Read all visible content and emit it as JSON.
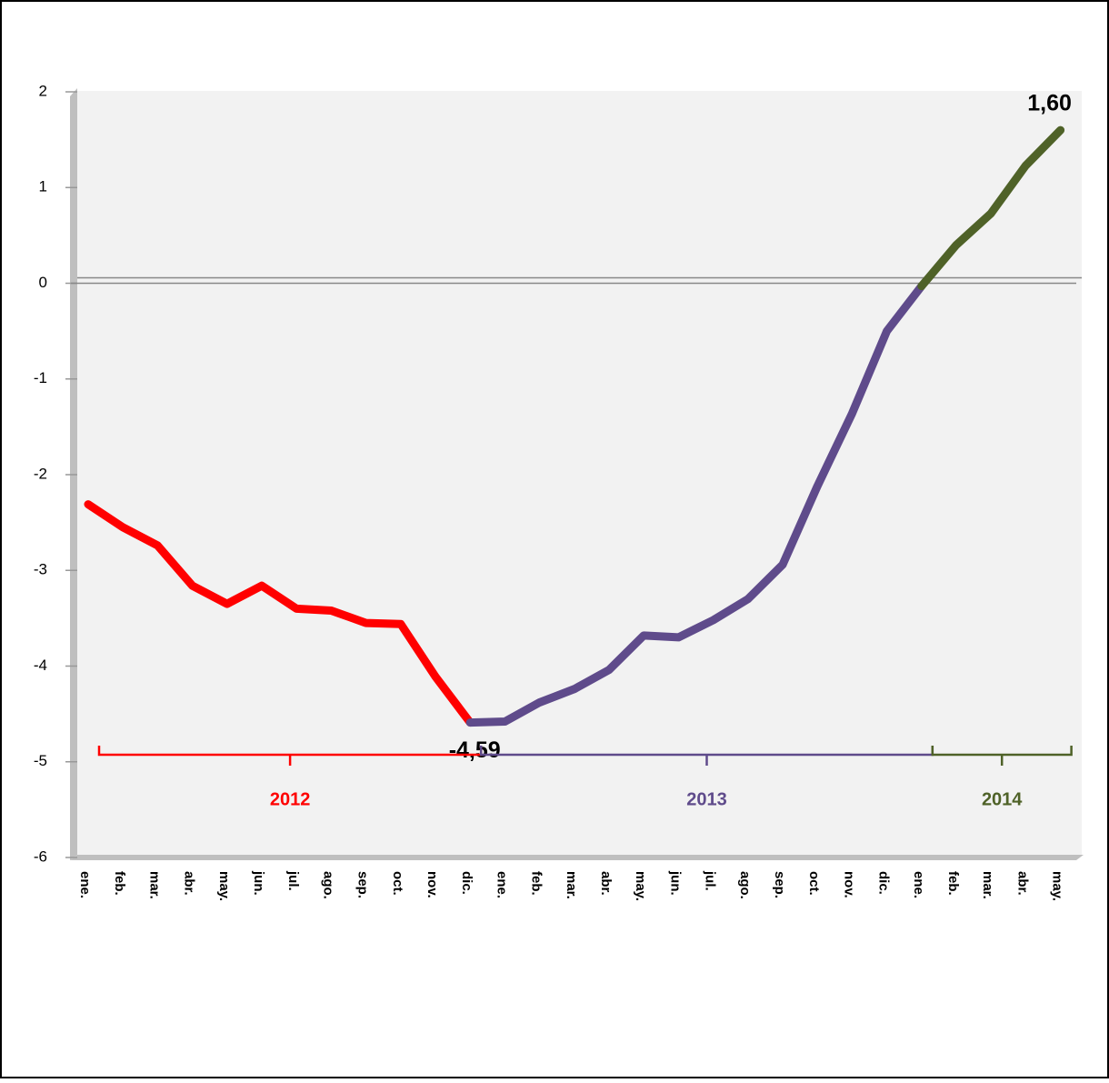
{
  "chart_data": {
    "type": "line",
    "categories": [
      "ene.",
      "feb.",
      "mar.",
      "abr.",
      "may.",
      "jun.",
      "jul.",
      "ago.",
      "sep.",
      "oct.",
      "nov.",
      "dic.",
      "ene.",
      "feb.",
      "mar.",
      "abr.",
      "may.",
      "jun.",
      "jul.",
      "ago.",
      "sep.",
      "oct.",
      "nov.",
      "dic.",
      "ene.",
      "feb.",
      "mar.",
      "abr.",
      "may."
    ],
    "series": [
      {
        "name": "2012",
        "color": "#ff0000",
        "values": [
          -2.31,
          -2.55,
          -2.74,
          -3.16,
          -3.35,
          -3.16,
          -3.4,
          -3.42,
          -3.55,
          -3.56,
          -4.11,
          -4.59,
          null,
          null,
          null,
          null,
          null,
          null,
          null,
          null,
          null,
          null,
          null,
          null,
          null,
          null,
          null,
          null,
          null
        ],
        "value_labels": [
          null,
          null,
          null,
          null,
          null,
          null,
          null,
          null,
          null,
          null,
          null,
          "-4,59",
          null,
          null,
          null,
          null,
          null,
          null,
          null,
          null,
          null,
          null,
          null,
          null,
          null,
          null,
          null,
          null,
          null
        ]
      },
      {
        "name": "2013",
        "color": "#5f4b8b",
        "values": [
          null,
          null,
          null,
          null,
          null,
          null,
          null,
          null,
          null,
          null,
          null,
          -4.59,
          -4.58,
          -4.38,
          -4.24,
          -4.04,
          -3.68,
          -3.7,
          -3.52,
          -3.3,
          -2.94,
          -2.12,
          -1.36,
          -0.5,
          -0.03,
          null,
          null,
          null,
          null
        ]
      },
      {
        "name": "2014",
        "color": "#4f6228",
        "values": [
          null,
          null,
          null,
          null,
          null,
          null,
          null,
          null,
          null,
          null,
          null,
          null,
          null,
          null,
          null,
          null,
          null,
          null,
          null,
          null,
          null,
          null,
          null,
          null,
          -0.03,
          0.4,
          0.73,
          1.23,
          1.6
        ],
        "value_labels": [
          null,
          null,
          null,
          null,
          null,
          null,
          null,
          null,
          null,
          null,
          null,
          null,
          null,
          null,
          null,
          null,
          null,
          null,
          null,
          null,
          null,
          null,
          null,
          null,
          null,
          null,
          null,
          null,
          "1,60"
        ]
      }
    ],
    "ylim": [
      -6,
      2
    ],
    "yticks": [
      -6,
      -5,
      -4,
      -3,
      -2,
      -1,
      0,
      1,
      2
    ],
    "grid": false
  }
}
